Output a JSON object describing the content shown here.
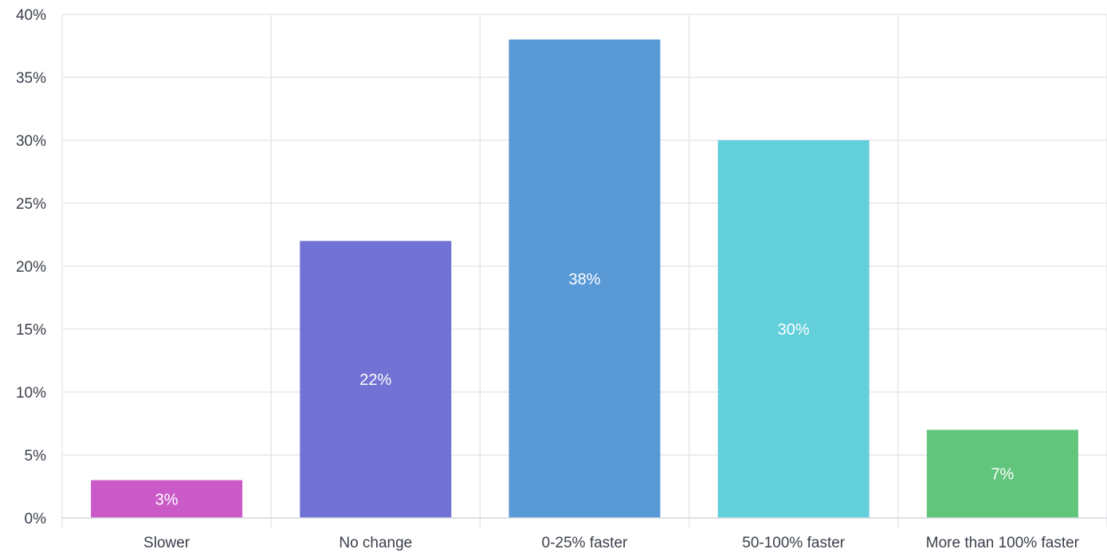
{
  "chart_data": {
    "type": "bar",
    "title": "",
    "xlabel": "",
    "ylabel": "",
    "categories": [
      "Slower",
      "No change",
      "0-25% faster",
      "50-100% faster",
      "More than 100% faster"
    ],
    "values": [
      3,
      22,
      38,
      30,
      7
    ],
    "value_labels": [
      "3%",
      "22%",
      "38%",
      "30%",
      "7%"
    ],
    "colors": [
      "#c95ac8",
      "#7272d4",
      "#5899d6",
      "#62cfda",
      "#62c57c"
    ],
    "ylim": [
      0,
      40
    ],
    "yticks": [
      0,
      5,
      10,
      15,
      20,
      25,
      30,
      35,
      40
    ],
    "ytick_labels": [
      "0%",
      "5%",
      "10%",
      "15%",
      "20%",
      "25%",
      "30%",
      "35%",
      "40%"
    ],
    "grid": true,
    "legend": "none"
  }
}
